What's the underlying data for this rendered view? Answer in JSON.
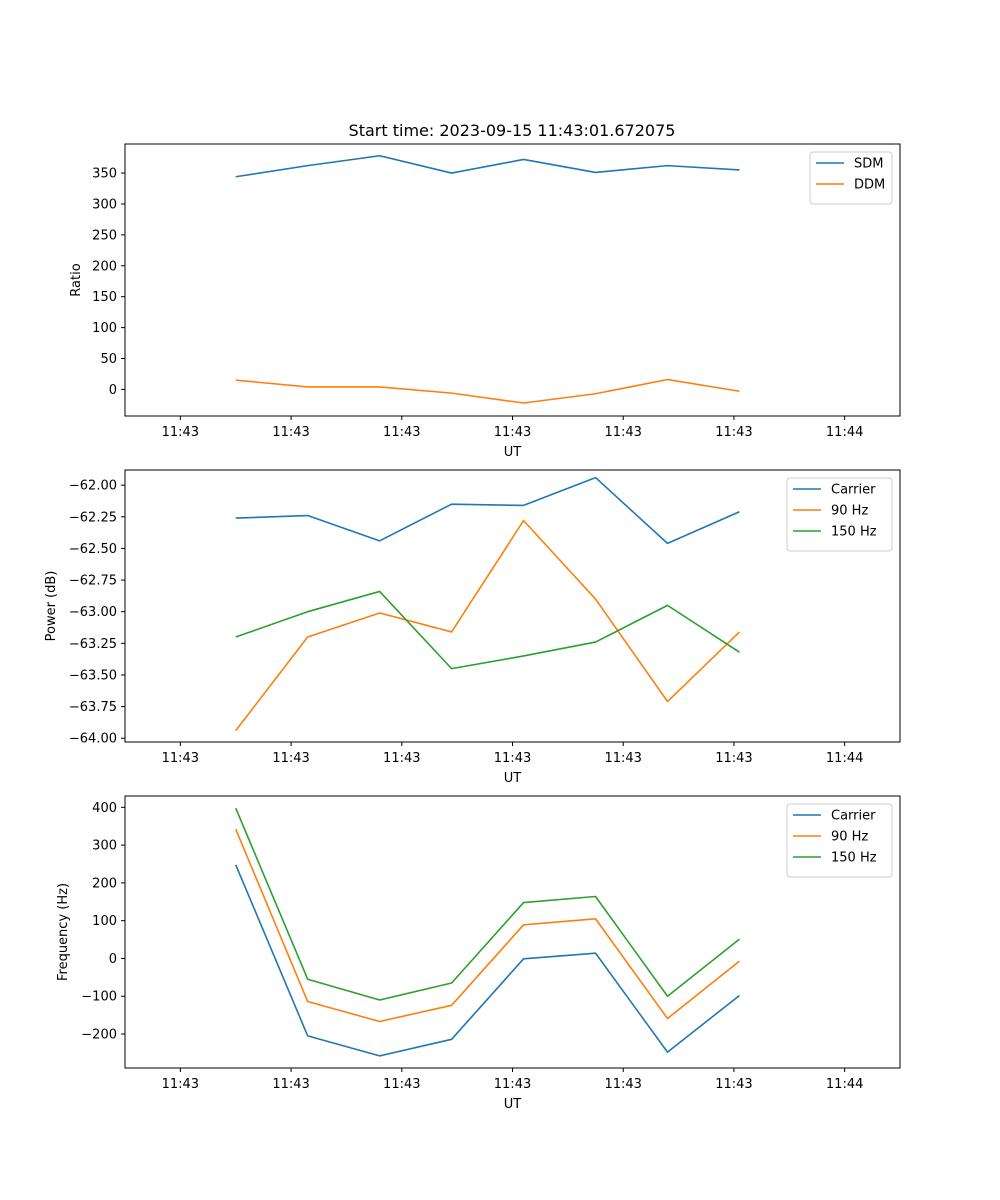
{
  "figure": {
    "title": "Start time: 2023-09-15 11:43:01.672075"
  },
  "chart_data": [
    {
      "type": "line",
      "title": "Start time: 2023-09-15 11:43:01.672075",
      "xlabel": "UT",
      "ylabel": "Ratio",
      "x_tick_labels": [
        "11:43",
        "11:43",
        "11:43",
        "11:43",
        "11:43",
        "11:43",
        "11:44"
      ],
      "x_range": [
        0.5,
        12.5
      ],
      "x": [
        1.5,
        2.8,
        4.1,
        5.4,
        6.7,
        8.0,
        9.3,
        10.6
      ],
      "ylim": [
        -43,
        397
      ],
      "yticks": [
        0,
        50,
        100,
        150,
        200,
        250,
        300,
        350
      ],
      "ytick_labels": [
        "0",
        "50",
        "100",
        "150",
        "200",
        "250",
        "300",
        "350"
      ],
      "legend_position": "top-right",
      "series": [
        {
          "name": "SDM",
          "color": "#1f77b4",
          "values": [
            344,
            362,
            378,
            350,
            372,
            351,
            362,
            355
          ]
        },
        {
          "name": "DDM",
          "color": "#ff7f0e",
          "values": [
            15,
            4,
            4,
            -6,
            -22,
            -7,
            16,
            -3
          ]
        }
      ]
    },
    {
      "type": "line",
      "title": "",
      "xlabel": "UT",
      "ylabel": "Power (dB)",
      "x_tick_labels": [
        "11:43",
        "11:43",
        "11:43",
        "11:43",
        "11:43",
        "11:43",
        "11:44"
      ],
      "x_range": [
        0.5,
        12.5
      ],
      "x": [
        1.5,
        2.8,
        4.1,
        5.4,
        6.7,
        8.0,
        9.3,
        10.6
      ],
      "ylim": [
        -64.03,
        -61.88
      ],
      "yticks": [
        -64.0,
        -63.75,
        -63.5,
        -63.25,
        -63.0,
        -62.75,
        -62.5,
        -62.25,
        -62.0
      ],
      "ytick_labels": [
        "−64.00",
        "−63.75",
        "−63.50",
        "−63.25",
        "−63.00",
        "−62.75",
        "−62.50",
        "−62.25",
        "−62.00"
      ],
      "legend_position": "top-right",
      "series": [
        {
          "name": "Carrier",
          "color": "#1f77b4",
          "values": [
            -62.26,
            -62.24,
            -62.44,
            -62.15,
            -62.16,
            -61.94,
            -62.46,
            -62.21
          ]
        },
        {
          "name": "90 Hz",
          "color": "#ff7f0e",
          "values": [
            -63.94,
            -63.2,
            -63.01,
            -63.16,
            -62.28,
            -62.9,
            -63.71,
            -63.16
          ]
        },
        {
          "name": "150 Hz",
          "color": "#2ca02c",
          "values": [
            -63.2,
            -63.0,
            -62.84,
            -63.45,
            -63.35,
            -63.24,
            -62.95,
            -63.32
          ]
        }
      ]
    },
    {
      "type": "line",
      "title": "",
      "xlabel": "UT",
      "ylabel": "Frequency (Hz)",
      "x_tick_labels": [
        "11:43",
        "11:43",
        "11:43",
        "11:43",
        "11:43",
        "11:43",
        "11:44"
      ],
      "x_range": [
        0.5,
        12.5
      ],
      "x": [
        1.5,
        2.8,
        4.1,
        5.4,
        6.7,
        8.0,
        9.3,
        10.6
      ],
      "ylim": [
        -290,
        430
      ],
      "yticks": [
        -200,
        -100,
        0,
        100,
        200,
        300,
        400
      ],
      "ytick_labels": [
        "−200",
        "−100",
        "0",
        "100",
        "200",
        "300",
        "400"
      ],
      "legend_position": "top-right",
      "series": [
        {
          "name": "Carrier",
          "color": "#1f77b4",
          "values": [
            248,
            -205,
            -258,
            -214,
            -1,
            14,
            -248,
            -98
          ]
        },
        {
          "name": "90 Hz",
          "color": "#ff7f0e",
          "values": [
            342,
            -114,
            -167,
            -124,
            89,
            105,
            -159,
            -7
          ]
        },
        {
          "name": "150 Hz",
          "color": "#2ca02c",
          "values": [
            398,
            -55,
            -110,
            -65,
            148,
            164,
            -100,
            51
          ]
        }
      ]
    }
  ]
}
